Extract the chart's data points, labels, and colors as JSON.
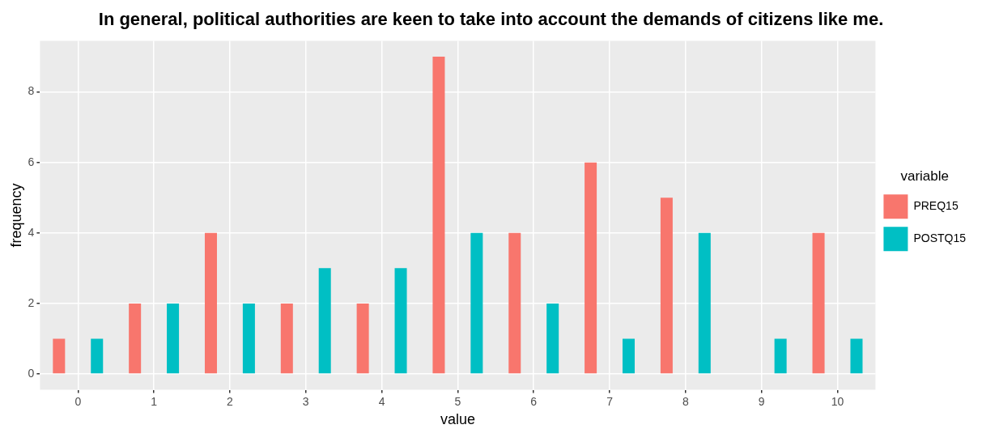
{
  "chart_data": {
    "type": "bar",
    "title": "In general, political authorities are keen to take into account the demands of citizens like me.",
    "xlabel": "value",
    "ylabel": "frequency",
    "legend_title": "variable",
    "categories": [
      "0",
      "1",
      "2",
      "3",
      "4",
      "5",
      "6",
      "7",
      "8",
      "9",
      "10"
    ],
    "series": [
      {
        "name": "PREQ15",
        "color": "#f8766d",
        "values": [
          1,
          2,
          4,
          2,
          2,
          9,
          4,
          6,
          5,
          null,
          4
        ]
      },
      {
        "name": "POSTQ15",
        "color": "#00bfc4",
        "values": [
          1,
          2,
          2,
          3,
          3,
          4,
          2,
          1,
          4,
          1,
          1
        ]
      }
    ],
    "ylim": [
      -0.45,
      9.45
    ],
    "yticks": [
      0,
      2,
      4,
      6,
      8
    ],
    "grid": true,
    "legend": "right"
  }
}
